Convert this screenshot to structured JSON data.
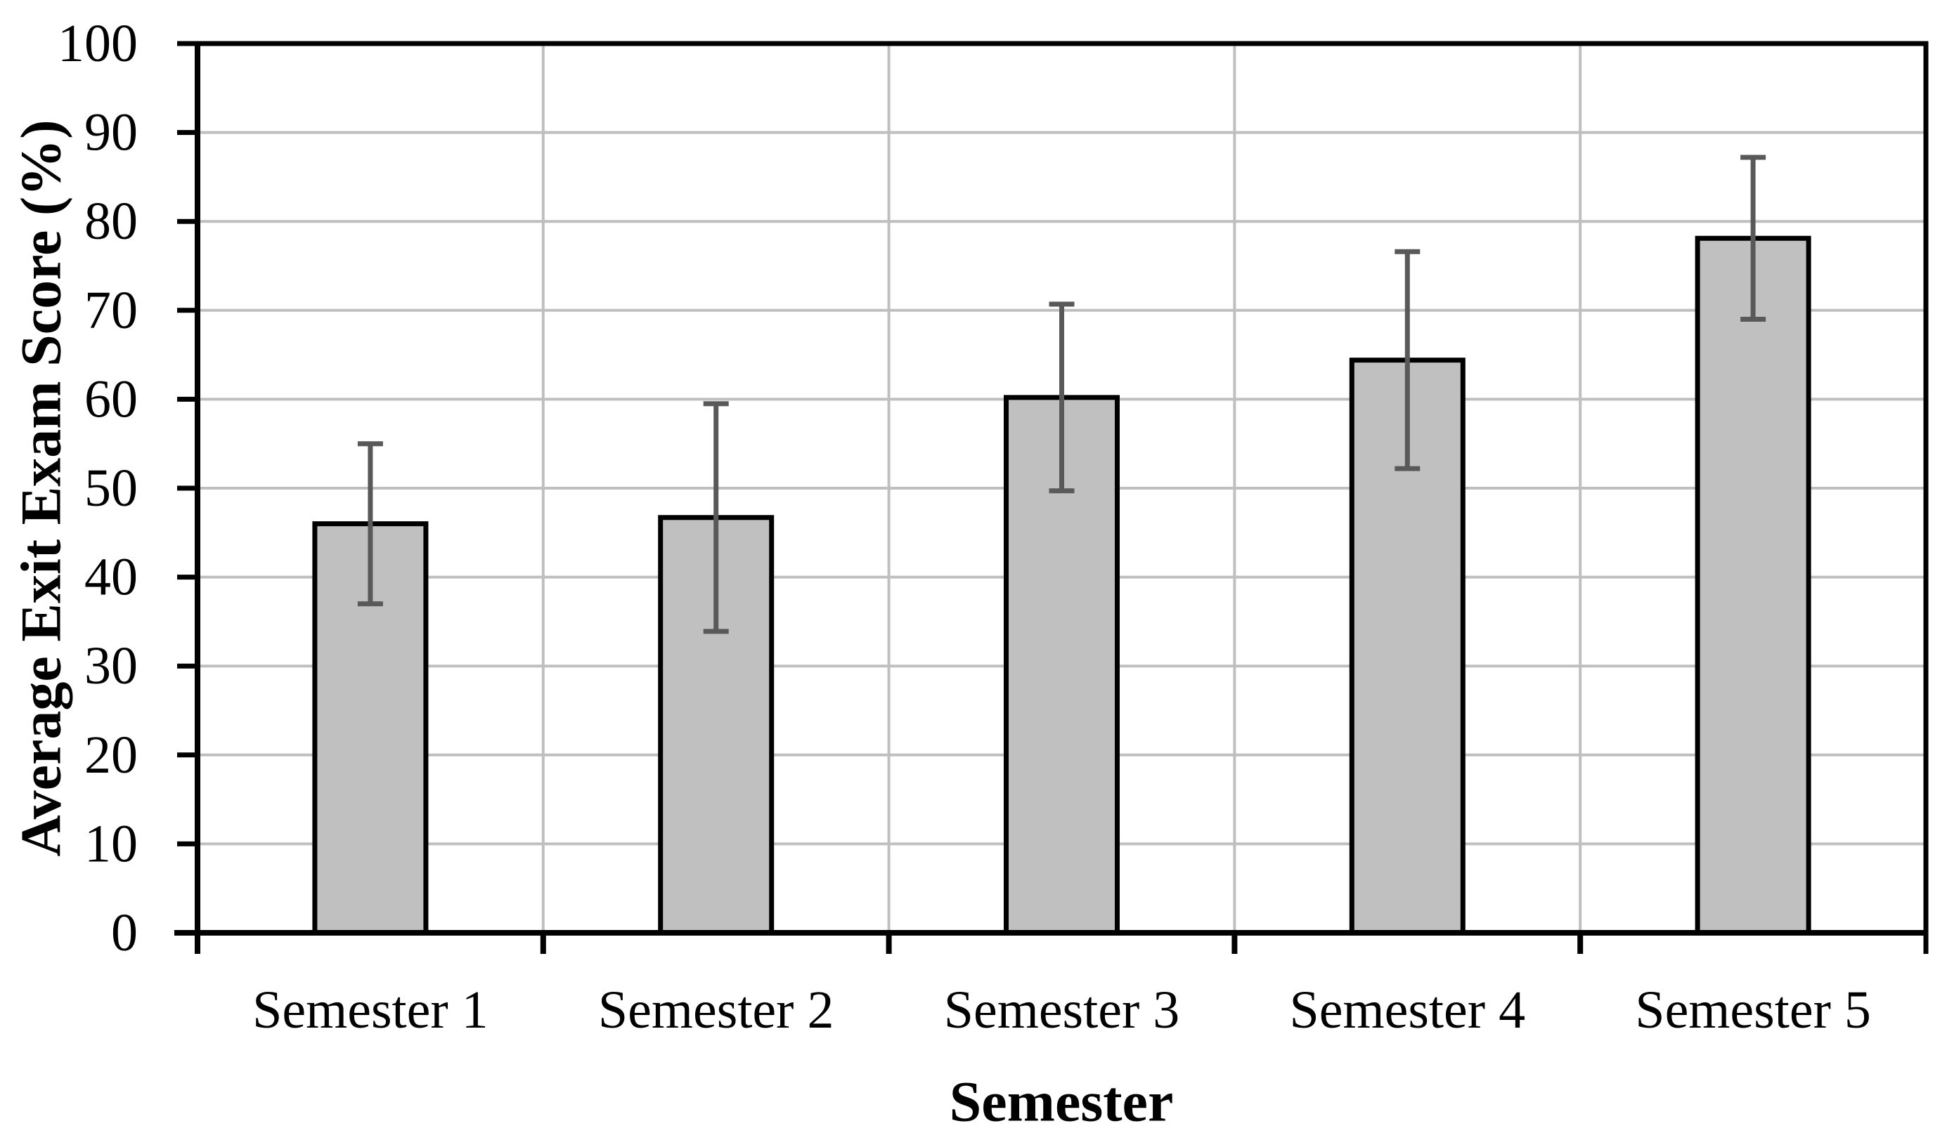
{
  "chart_data": {
    "type": "bar",
    "title": "",
    "categories": [
      "Semester 1",
      "Semester 2",
      "Semester 3",
      "Semester 4",
      "Semester 5"
    ],
    "series": [
      {
        "name": "Average Exit Exam Score",
        "values": [
          46.0,
          46.7,
          60.2,
          64.4,
          78.1
        ],
        "error_bars": [
          9.0,
          12.8,
          10.5,
          12.2,
          9.1
        ]
      }
    ],
    "xlabel": "Semester",
    "ylabel": "Average Exit Exam Score (%)",
    "ylim": [
      0,
      100
    ],
    "yticks": [
      0,
      10,
      20,
      30,
      40,
      50,
      60,
      70,
      80,
      90,
      100
    ],
    "grid": {
      "horizontal_major": true,
      "vertical_category_boundaries": true
    },
    "legend": "none",
    "style": {
      "bar_fill": "#C0C0C0",
      "bar_border": "#000000",
      "error_bar_color": "#595959",
      "gridline_color": "#BFBFBF",
      "axis_color": "#000000",
      "text_color": "#000000",
      "background": "#FFFFFF"
    }
  }
}
